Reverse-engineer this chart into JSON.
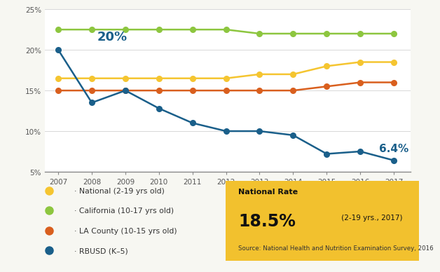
{
  "years": [
    2007,
    2008,
    2009,
    2010,
    2011,
    2012,
    2013,
    2014,
    2015,
    2016,
    2017
  ],
  "national": [
    16.5,
    16.5,
    16.5,
    16.5,
    16.5,
    16.5,
    17.0,
    17.0,
    18.0,
    18.5,
    18.5
  ],
  "california": [
    22.5,
    22.5,
    22.5,
    22.5,
    22.5,
    22.5,
    22.0,
    22.0,
    22.0,
    22.0,
    22.0
  ],
  "la_county": [
    15.0,
    15.0,
    15.0,
    15.0,
    15.0,
    15.0,
    15.0,
    15.0,
    15.5,
    16.0,
    16.0
  ],
  "rbusd": [
    20.0,
    13.5,
    15.0,
    12.8,
    11.0,
    10.0,
    10.0,
    9.5,
    7.2,
    7.5,
    6.4
  ],
  "colors": {
    "national": "#f5c530",
    "california": "#8dc63f",
    "la_county": "#d95f1e",
    "rbusd": "#1a5f8a"
  },
  "ylim": [
    5,
    25
  ],
  "yticks": [
    5,
    10,
    15,
    20,
    25
  ],
  "ytick_labels": [
    "5%",
    "10%",
    "15%",
    "20%",
    "25%"
  ],
  "bg_color": "#f7f7f2",
  "plot_bg_color": "#ffffff",
  "legend_box_color": "#f2c12e",
  "national_rate_text": "National Rate",
  "national_rate_value": "18.5%",
  "national_rate_detail": " (2-19 yrs., 2017)",
  "national_rate_source": "Source: National Health and Nutrition Examination Survey, 2016",
  "legend_items": [
    [
      "#f5c530",
      "· National (2-19 yrs old)"
    ],
    [
      "#8dc63f",
      "· California (10-17 yrs old)"
    ],
    [
      "#d95f1e",
      "· LA County (10-15 yrs old)"
    ],
    [
      "#1a5f8a",
      "· RBUSD (K–5)"
    ]
  ]
}
